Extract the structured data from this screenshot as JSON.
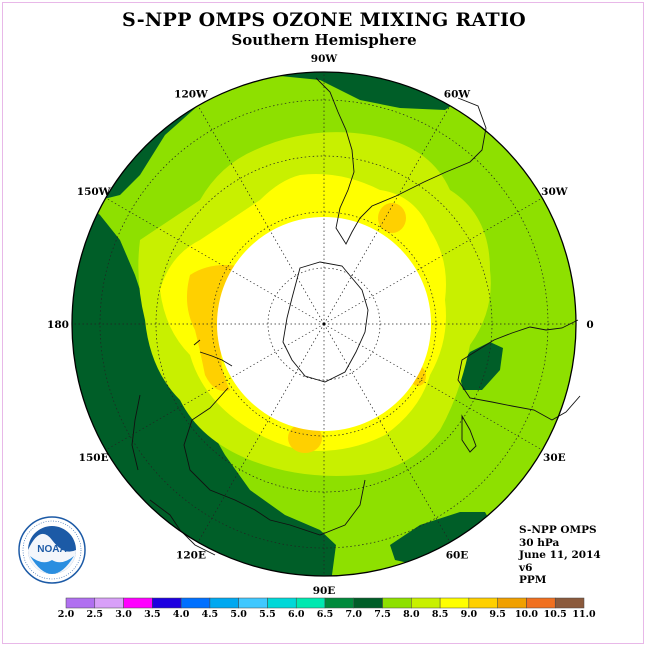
{
  "title": "S-NPP OMPS OZONE MIXING RATIO",
  "subtitle": "Southern Hemisphere",
  "info": {
    "instrument": "S-NPP OMPS",
    "level": "30 hPa",
    "date": "June 11, 2014",
    "version": "v6",
    "units": "PPM"
  },
  "logo": {
    "name": "NOAA",
    "ring_text": "NATIONAL OCEANIC AND ATMOSPHERIC ADMINISTRATION · U.S. DEPARTMENT OF COMMERCE"
  },
  "longitude_labels": [
    "0",
    "30E",
    "60E",
    "90E",
    "120E",
    "150E",
    "180",
    "150W",
    "120W",
    "90W",
    "60W",
    "30W"
  ],
  "colorbar": {
    "ticks": [
      "2.0",
      "2.5",
      "3.0",
      "3.5",
      "4.0",
      "4.5",
      "5.0",
      "5.5",
      "6.0",
      "6.5",
      "7.0",
      "7.5",
      "8.0",
      "8.5",
      "9.0",
      "9.5",
      "10.0",
      "10.5",
      "11.0"
    ],
    "colors": [
      "#b070f0",
      "#d8a0f8",
      "#ff00ff",
      "#1e00e0",
      "#0070ff",
      "#00a8f0",
      "#40c8ff",
      "#00d8d8",
      "#00e8b0",
      "#008a3c",
      "#005e28",
      "#8ee000",
      "#c8f000",
      "#ffff00",
      "#ffd000",
      "#f0a000",
      "#f07020",
      "#ff0000",
      "#8b5a3c"
    ]
  },
  "palette": {
    "no_data": "#ffffff",
    "low_7": "#005e28",
    "band_7_5": "#8ee000",
    "band_8": "#c8f000",
    "band_8_5": "#ffff00",
    "band_9": "#ffd000",
    "band_9_5": "#f0a000"
  }
}
